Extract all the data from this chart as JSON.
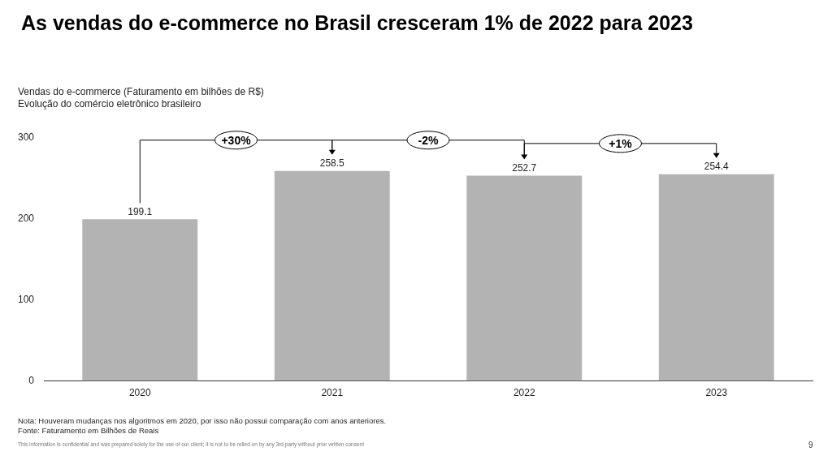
{
  "chart_data": {
    "type": "bar",
    "title": "As vendas do e-commerce no Brasil cresceram 1% de 2022 para 2023",
    "subtitle": "Vendas do e-commerce (Faturamento em bilhões de R$)\nEvolução do comércio eletrônico brasileiro",
    "categories": [
      "2020",
      "2021",
      "2022",
      "2023"
    ],
    "values": [
      199.1,
      258.5,
      252.7,
      254.4
    ],
    "color": "#b3b3b3",
    "ylim": [
      0,
      300
    ],
    "yticks": [
      0,
      100,
      200,
      300
    ],
    "grid": false,
    "legend": false,
    "data_labels": true,
    "annotations": [
      "+30%",
      "-2%",
      "+1%",
      "Nota: Houveram mudanças nos algoritmos em 2020, por isso não possui comparação com anos anteriores.",
      "Fonte: Faturamento em Bilhões de Reais",
      "This information is confidential and was prepared solely for the use of our client; it is not to be relied on by any 3rd party without prior written consent",
      "9"
    ]
  }
}
